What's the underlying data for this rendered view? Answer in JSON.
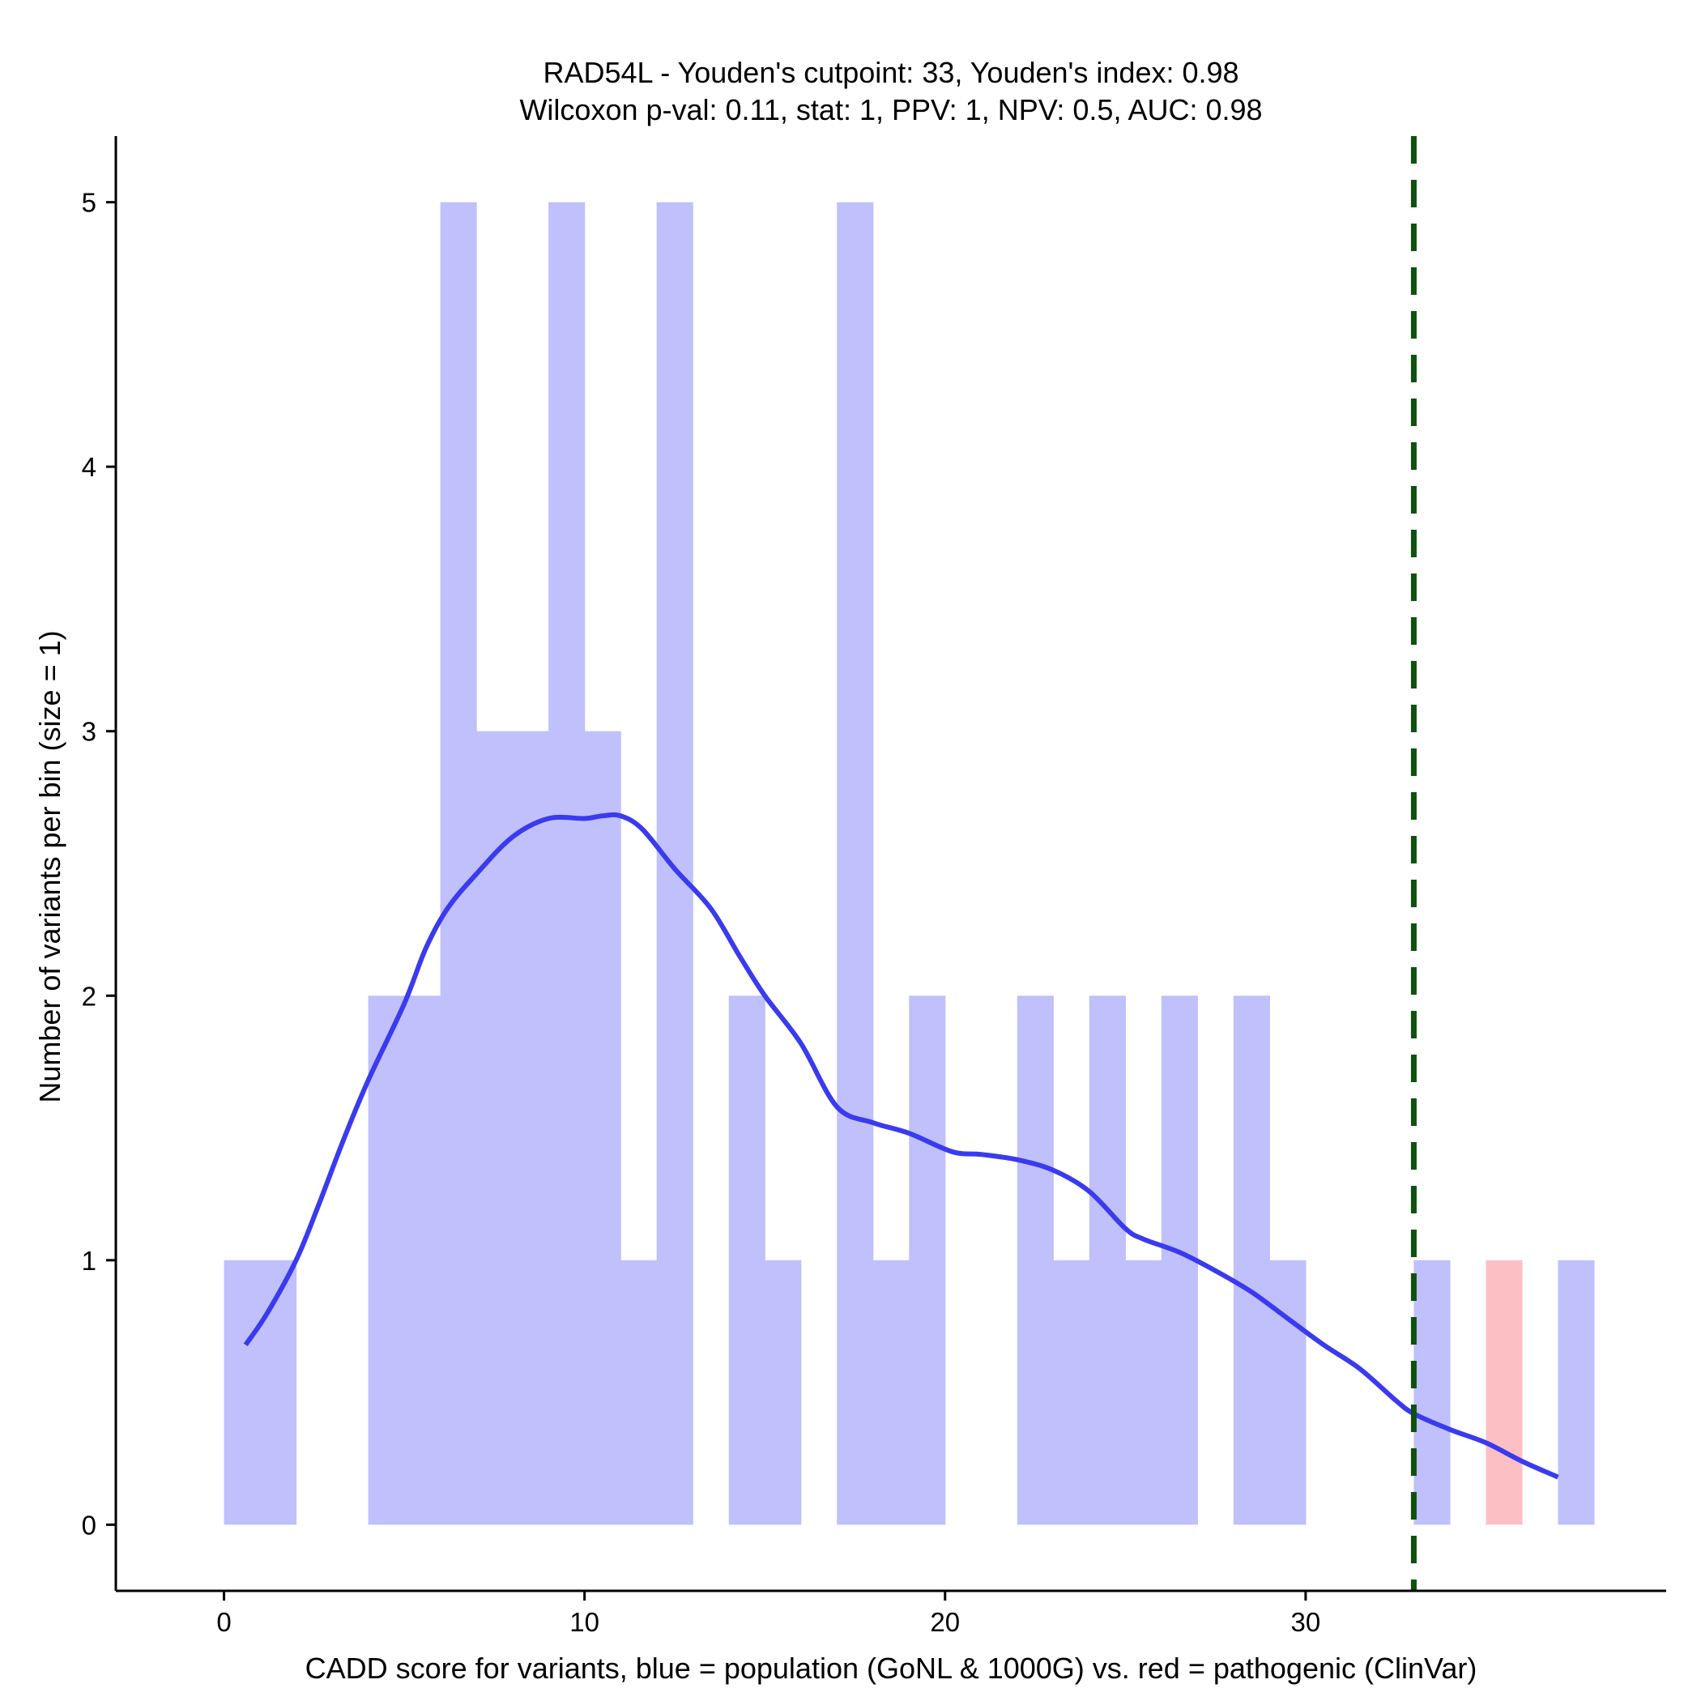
{
  "chart_data": {
    "type": "bar",
    "title_line1": "RAD54L - Youden's cutpoint: 33, Youden's index: 0.98",
    "title_line2": "Wilcoxon p-val: 0.11, stat: 1, PPV: 1, NPV: 0.5, AUC: 0.98",
    "xlabel": "CADD score for variants, blue = population (GoNL & 1000G) vs. red = pathogenic (ClinVar)",
    "ylabel": "Number of variants per bin (size = 1)",
    "xlim": [
      -3,
      40
    ],
    "ylim": [
      -0.25,
      5.25
    ],
    "x_ticks": [
      0,
      10,
      20,
      30
    ],
    "y_ticks": [
      0,
      1,
      2,
      3,
      4,
      5
    ],
    "bin_size": 1,
    "series": [
      {
        "color": "#c0c0fc",
        "bins": [
          [
            0,
            1
          ],
          [
            1,
            1
          ],
          [
            4,
            2
          ],
          [
            5,
            2
          ],
          [
            6,
            5
          ],
          [
            7,
            3
          ],
          [
            8,
            3
          ],
          [
            9,
            5
          ],
          [
            10,
            3
          ],
          [
            11,
            1
          ],
          [
            12,
            5
          ],
          [
            14,
            2
          ],
          [
            15,
            1
          ],
          [
            17,
            5
          ],
          [
            18,
            1
          ],
          [
            19,
            2
          ],
          [
            22,
            2
          ],
          [
            23,
            1
          ],
          [
            24,
            2
          ],
          [
            25,
            1
          ],
          [
            26,
            2
          ],
          [
            28,
            2
          ],
          [
            29,
            1
          ],
          [
            33,
            1
          ],
          [
            37,
            1
          ]
        ]
      },
      {
        "color": "#fcc0c4",
        "bins": [
          [
            35,
            1
          ]
        ]
      }
    ],
    "density_curve": {
      "color": "#3a3af0",
      "points": [
        [
          0.6,
          0.68
        ],
        [
          1.2,
          0.8
        ],
        [
          2.0,
          1.0
        ],
        [
          2.6,
          1.2
        ],
        [
          3.3,
          1.45
        ],
        [
          4.0,
          1.68
        ],
        [
          5.0,
          1.97
        ],
        [
          5.6,
          2.18
        ],
        [
          6.2,
          2.33
        ],
        [
          7.0,
          2.46
        ],
        [
          8.0,
          2.6
        ],
        [
          9.0,
          2.67
        ],
        [
          10.0,
          2.67
        ],
        [
          10.5,
          2.68
        ],
        [
          11.0,
          2.68
        ],
        [
          11.6,
          2.63
        ],
        [
          12.5,
          2.48
        ],
        [
          13.5,
          2.33
        ],
        [
          14.3,
          2.15
        ],
        [
          15.0,
          2.0
        ],
        [
          16.0,
          1.82
        ],
        [
          17.0,
          1.58
        ],
        [
          18.0,
          1.52
        ],
        [
          19.0,
          1.48
        ],
        [
          20.2,
          1.41
        ],
        [
          21.0,
          1.4
        ],
        [
          22.0,
          1.38
        ],
        [
          23.0,
          1.34
        ],
        [
          24.0,
          1.26
        ],
        [
          25.0,
          1.12
        ],
        [
          25.5,
          1.08
        ],
        [
          26.5,
          1.03
        ],
        [
          27.5,
          0.96
        ],
        [
          28.5,
          0.88
        ],
        [
          29.5,
          0.78
        ],
        [
          30.5,
          0.68
        ],
        [
          31.5,
          0.59
        ],
        [
          32.5,
          0.47
        ],
        [
          33.0,
          0.42
        ],
        [
          34.0,
          0.36
        ],
        [
          35.0,
          0.31
        ],
        [
          36.0,
          0.24
        ],
        [
          37.0,
          0.18
        ]
      ]
    },
    "cutpoint": {
      "x": 33,
      "color": "#0d520d"
    }
  }
}
